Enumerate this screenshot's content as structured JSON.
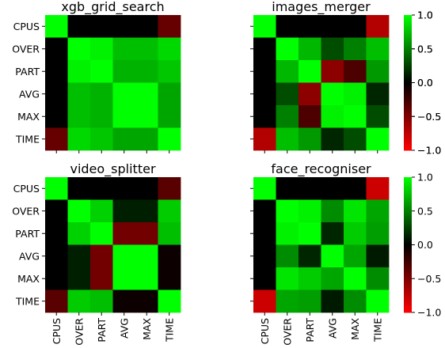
{
  "chart_data": {
    "type": "heatmap",
    "labels": [
      "CPUS",
      "OVER",
      "PART",
      "AVG",
      "MAX",
      "TIME"
    ],
    "colormap": {
      "stops": [
        {
          "value": -1.0,
          "color": "#ff0000"
        },
        {
          "value": 0.0,
          "color": "#000000"
        },
        {
          "value": 1.0,
          "color": "#00ff00"
        }
      ]
    },
    "value_range": [
      -1.0,
      1.0
    ],
    "colorbar_ticks": [
      {
        "value": 1.0,
        "label": "1.0"
      },
      {
        "value": 0.5,
        "label": "0.5"
      },
      {
        "value": 0.0,
        "label": "0.0"
      },
      {
        "value": -0.5,
        "label": "−0.5"
      },
      {
        "value": -1.0,
        "label": "−1.0"
      }
    ],
    "panels": [
      {
        "title": "xgb_grid_search",
        "matrix": [
          [
            1.0,
            0.0,
            0.0,
            0.0,
            0.0,
            -0.4
          ],
          [
            0.0,
            1.0,
            0.95,
            0.75,
            0.75,
            0.85
          ],
          [
            0.0,
            0.95,
            1.0,
            0.7,
            0.7,
            0.78
          ],
          [
            0.0,
            0.75,
            0.7,
            1.0,
            1.0,
            0.65
          ],
          [
            0.0,
            0.75,
            0.7,
            1.0,
            1.0,
            0.65
          ],
          [
            -0.4,
            0.85,
            0.78,
            0.65,
            0.65,
            1.0
          ]
        ]
      },
      {
        "title": "images_merger",
        "matrix": [
          [
            1.0,
            0.0,
            0.0,
            0.0,
            0.0,
            -0.7
          ],
          [
            0.0,
            1.0,
            0.72,
            0.3,
            0.5,
            0.75
          ],
          [
            0.0,
            0.72,
            1.0,
            -0.55,
            -0.3,
            0.6
          ],
          [
            0.0,
            0.3,
            -0.55,
            1.0,
            0.95,
            0.15
          ],
          [
            0.0,
            0.5,
            -0.3,
            0.95,
            1.0,
            0.3
          ],
          [
            -0.7,
            0.75,
            0.6,
            0.15,
            0.3,
            1.0
          ]
        ]
      },
      {
        "title": "video_splitter",
        "matrix": [
          [
            1.0,
            0.0,
            0.0,
            0.0,
            0.0,
            -0.35
          ],
          [
            0.0,
            1.0,
            0.82,
            0.12,
            0.12,
            0.8
          ],
          [
            0.0,
            0.82,
            1.0,
            -0.45,
            -0.45,
            0.75
          ],
          [
            0.0,
            0.12,
            -0.45,
            1.0,
            1.0,
            -0.05
          ],
          [
            0.0,
            0.12,
            -0.45,
            1.0,
            1.0,
            -0.05
          ],
          [
            -0.35,
            0.8,
            0.75,
            -0.05,
            -0.05,
            1.0
          ]
        ]
      },
      {
        "title": "face_recogniser",
        "matrix": [
          [
            1.0,
            0.0,
            0.0,
            0.0,
            0.0,
            -0.8
          ],
          [
            0.0,
            1.0,
            0.95,
            0.55,
            0.9,
            0.65
          ],
          [
            0.0,
            0.95,
            1.0,
            0.15,
            0.8,
            0.62
          ],
          [
            0.0,
            0.55,
            0.15,
            1.0,
            0.65,
            0.1
          ],
          [
            0.0,
            0.9,
            0.8,
            0.65,
            1.0,
            0.55
          ],
          [
            -0.8,
            0.65,
            0.62,
            0.1,
            0.55,
            1.0
          ]
        ]
      }
    ]
  }
}
